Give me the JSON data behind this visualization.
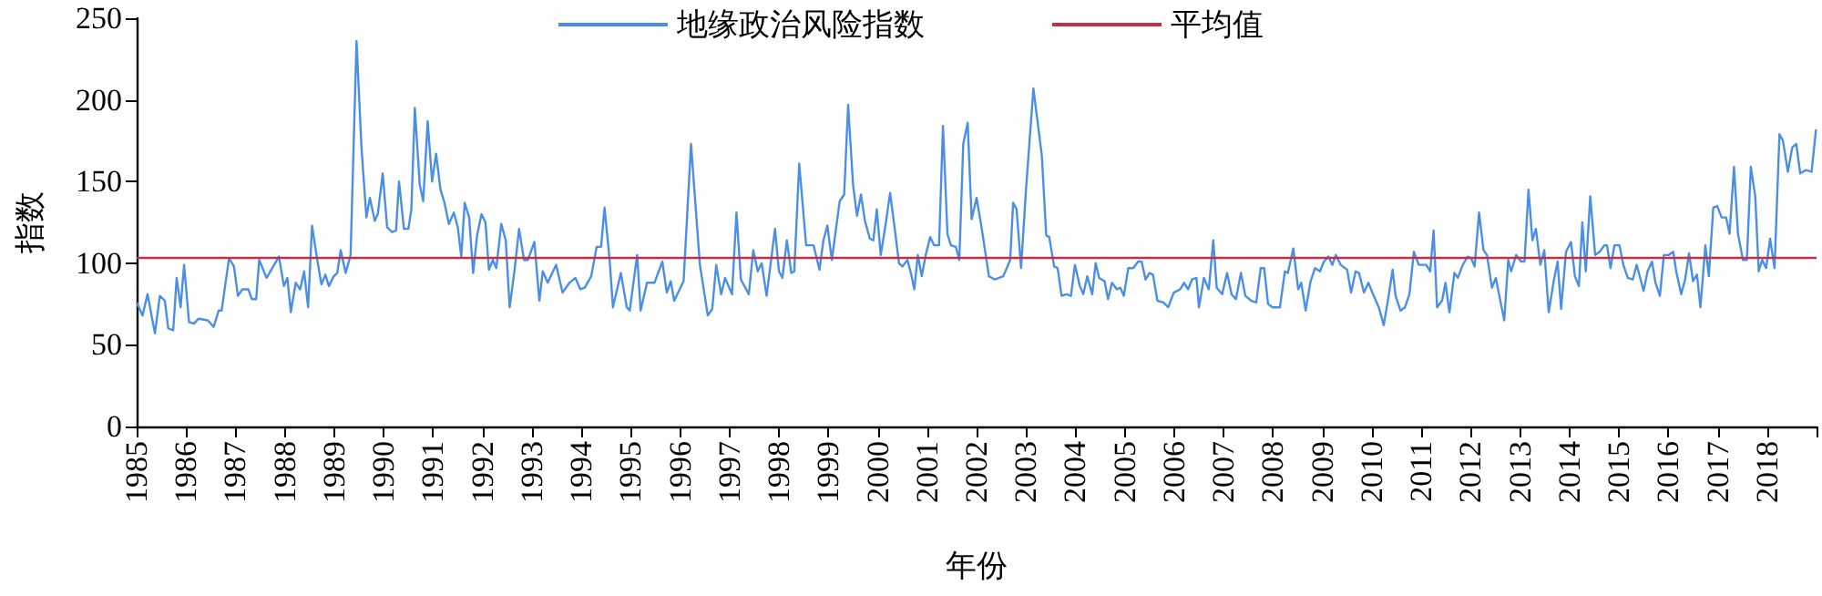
{
  "chart_data": {
    "type": "line",
    "xlabel": "年份",
    "ylabel": "指数",
    "legend": "top",
    "grid": false,
    "marker": "none",
    "line_style": "solid",
    "xlim": [
      1985,
      2019
    ],
    "ylim": [
      0,
      250
    ],
    "xticks": [
      1985,
      1986,
      1987,
      1988,
      1989,
      1990,
      1991,
      1992,
      1993,
      1994,
      1995,
      1996,
      1997,
      1998,
      1999,
      2000,
      2001,
      2002,
      2003,
      2004,
      2005,
      2006,
      2007,
      2008,
      2009,
      2010,
      2011,
      2012,
      2013,
      2014,
      2015,
      2016,
      2017,
      2018,
      {
        "value": 2019,
        "label": null
      }
    ],
    "yticks": [
      0,
      50,
      100,
      150,
      200,
      250
    ],
    "ref_lines": [
      {
        "axis": "y",
        "value": 103,
        "label": "平均值",
        "color": "#c0304a",
        "line_style": "solid"
      }
    ],
    "series": [
      {
        "name": "地缘政治风险指数",
        "color": "#4a8fe7",
        "x": [
          1985.0,
          1985.12,
          1985.22,
          1985.37,
          1985.47,
          1985.57,
          1985.64,
          1985.74,
          1985.81,
          1985.89,
          1985.96,
          1986.06,
          1986.16,
          1986.25,
          1986.44,
          1986.56,
          1986.66,
          1986.72,
          1986.87,
          1986.97,
          1987.05,
          1987.14,
          1987.26,
          1987.33,
          1987.42,
          1987.48,
          1987.63,
          1987.88,
          1987.98,
          1988.05,
          1988.12,
          1988.22,
          1988.31,
          1988.39,
          1988.47,
          1988.55,
          1988.65,
          1988.74,
          1988.82,
          1988.89,
          1988.99,
          1989.06,
          1989.13,
          1989.23,
          1989.33,
          1989.45,
          1989.55,
          1989.65,
          1989.72,
          1989.82,
          1989.88,
          1989.98,
          1990.07,
          1990.17,
          1990.25,
          1990.31,
          1990.41,
          1990.5,
          1990.56,
          1990.63,
          1990.73,
          1990.8,
          1990.89,
          1990.98,
          1991.06,
          1991.15,
          1991.23,
          1991.32,
          1991.42,
          1991.5,
          1991.57,
          1991.64,
          1991.73,
          1991.81,
          1991.89,
          1991.98,
          1992.06,
          1992.13,
          1992.21,
          1992.28,
          1992.38,
          1992.47,
          1992.55,
          1992.65,
          1992.74,
          1992.84,
          1992.92,
          1993.05,
          1993.15,
          1993.22,
          1993.32,
          1993.49,
          1993.62,
          1993.76,
          1993.88,
          1993.98,
          1994.07,
          1994.2,
          1994.31,
          1994.4,
          1994.47,
          1994.57,
          1994.64,
          1994.8,
          1994.92,
          1994.98,
          1995.13,
          1995.2,
          1995.33,
          1995.48,
          1995.64,
          1995.73,
          1995.81,
          1995.88,
          1996.07,
          1996.22,
          1996.4,
          1996.56,
          1996.65,
          1996.73,
          1996.83,
          1996.91,
          1997.05,
          1997.14,
          1997.23,
          1997.39,
          1997.48,
          1997.57,
          1997.65,
          1997.75,
          1997.92,
          1998.0,
          1998.07,
          1998.16,
          1998.25,
          1998.31,
          1998.41,
          1998.55,
          1998.7,
          1998.82,
          1998.9,
          1998.98,
          1999.07,
          1999.23,
          1999.32,
          1999.4,
          1999.5,
          1999.58,
          1999.66,
          1999.74,
          1999.84,
          1999.91,
          1999.98,
          2000.06,
          2000.15,
          2000.25,
          2000.34,
          2000.43,
          2000.5,
          2000.6,
          2000.67,
          2000.74,
          2000.81,
          2000.89,
          2000.97,
          2001.06,
          2001.14,
          2001.24,
          2001.32,
          2001.41,
          2001.48,
          2001.58,
          2001.65,
          2001.73,
          2001.82,
          2001.9,
          2002.0,
          2002.1,
          2002.25,
          2002.37,
          2002.54,
          2002.68,
          2002.74,
          2002.81,
          2002.9,
          2003.0,
          2003.15,
          2003.32,
          2003.41,
          2003.47,
          2003.57,
          2003.64,
          2003.72,
          2003.82,
          2003.91,
          2003.99,
          2004.09,
          2004.16,
          2004.24,
          2004.34,
          2004.41,
          2004.48,
          2004.59,
          2004.66,
          2004.74,
          2004.84,
          2004.91,
          2004.98,
          2005.07,
          2005.17,
          2005.27,
          2005.34,
          2005.42,
          2005.5,
          2005.57,
          2005.66,
          2005.78,
          2005.88,
          2005.99,
          2006.12,
          2006.2,
          2006.28,
          2006.36,
          2006.45,
          2006.5,
          2006.6,
          2006.7,
          2006.79,
          2006.86,
          2006.97,
          2007.07,
          2007.16,
          2007.25,
          2007.35,
          2007.44,
          2007.56,
          2007.66,
          2007.75,
          2007.82,
          2007.9,
          2007.99,
          2008.14,
          2008.24,
          2008.3,
          2008.41,
          2008.51,
          2008.57,
          2008.66,
          2008.76,
          2008.85,
          2008.95,
          2009.03,
          2009.12,
          2009.2,
          2009.27,
          2009.37,
          2009.5,
          2009.58,
          2009.67,
          2009.74,
          2009.84,
          2009.93,
          2010.01,
          2010.14,
          2010.24,
          2010.34,
          2010.42,
          2010.48,
          2010.58,
          2010.67,
          2010.76,
          2010.85,
          2010.95,
          2011.1,
          2011.18,
          2011.25,
          2011.32,
          2011.42,
          2011.49,
          2011.57,
          2011.67,
          2011.74,
          2011.84,
          2011.94,
          2012.01,
          2012.08,
          2012.17,
          2012.26,
          2012.33,
          2012.43,
          2012.51,
          2012.58,
          2012.68,
          2012.76,
          2012.82,
          2012.92,
          2013.02,
          2013.09,
          2013.17,
          2013.25,
          2013.32,
          2013.41,
          2013.49,
          2013.58,
          2013.68,
          2013.76,
          2013.83,
          2013.93,
          2014.03,
          2014.11,
          2014.19,
          2014.26,
          2014.33,
          2014.42,
          2014.52,
          2014.61,
          2014.71,
          2014.76,
          2014.83,
          2014.91,
          2015.01,
          2015.09,
          2015.18,
          2015.28,
          2015.36,
          2015.5,
          2015.58,
          2015.67,
          2015.74,
          2015.83,
          2015.91,
          2016.01,
          2016.1,
          2016.16,
          2016.26,
          2016.34,
          2016.42,
          2016.5,
          2016.58,
          2016.65,
          2016.75,
          2016.82,
          2016.91,
          2016.99,
          2017.08,
          2017.17,
          2017.24,
          2017.33,
          2017.41,
          2017.51,
          2017.59,
          2017.67,
          2017.76,
          2017.83,
          2017.9,
          2017.98,
          2018.06,
          2018.15,
          2018.25,
          2018.32,
          2018.42,
          2018.51,
          2018.59,
          2018.67,
          2018.78,
          2018.9,
          2018.99
        ],
        "values": [
          76,
          68,
          81,
          57,
          80,
          77,
          60,
          59,
          91,
          73,
          99,
          64,
          63,
          66,
          65,
          61,
          71,
          71,
          103,
          98,
          80,
          84,
          84,
          78,
          78,
          102,
          91,
          104,
          86,
          91,
          70,
          88,
          84,
          95,
          73,
          123,
          103,
          87,
          93,
          86,
          92,
          94,
          108,
          94,
          105,
          236,
          171,
          128,
          140,
          126,
          130,
          155,
          122,
          119,
          120,
          150,
          121,
          121,
          133,
          195,
          148,
          138,
          187,
          150,
          167,
          145,
          137,
          124,
          131,
          122,
          104,
          137,
          128,
          94,
          117,
          130,
          125,
          96,
          102,
          97,
          124,
          114,
          73,
          96,
          121,
          102,
          102,
          113,
          77,
          95,
          88,
          99,
          82,
          88,
          91,
          84,
          85,
          92,
          110,
          110,
          134,
          103,
          73,
          94,
          73,
          71,
          105,
          71,
          88,
          88,
          101,
          82,
          89,
          77,
          89,
          173,
          99,
          68,
          72,
          99,
          81,
          91,
          81,
          131,
          90,
          81,
          108,
          95,
          100,
          80,
          121,
          95,
          91,
          114,
          94,
          95,
          161,
          111,
          111,
          96,
          114,
          123,
          102,
          138,
          142,
          197,
          148,
          129,
          142,
          126,
          115,
          114,
          133,
          105,
          122,
          143,
          122,
          100,
          98,
          102,
          94,
          84,
          105,
          92,
          105,
          116,
          111,
          111,
          184,
          118,
          111,
          110,
          102,
          173,
          186,
          127,
          140,
          122,
          92,
          90,
          92,
          102,
          137,
          133,
          97,
          145,
          207,
          166,
          117,
          116,
          98,
          97,
          80,
          81,
          80,
          99,
          86,
          81,
          92,
          81,
          100,
          91,
          89,
          78,
          88,
          84,
          85,
          80,
          97,
          97,
          101,
          101,
          90,
          94,
          93,
          77,
          76,
          73,
          82,
          84,
          88,
          84,
          90,
          91,
          73,
          91,
          84,
          114,
          85,
          81,
          94,
          81,
          78,
          94,
          80,
          77,
          76,
          97,
          97,
          75,
          73,
          73,
          95,
          94,
          109,
          84,
          88,
          71,
          89,
          97,
          95,
          101,
          104,
          99,
          105,
          99,
          96,
          82,
          95,
          94,
          82,
          88,
          82,
          73,
          62,
          80,
          96,
          80,
          71,
          73,
          81,
          107,
          99,
          99,
          95,
          120,
          73,
          77,
          88,
          70,
          94,
          91,
          99,
          104,
          103,
          98,
          131,
          108,
          105,
          85,
          91,
          80,
          65,
          102,
          95,
          105,
          101,
          101,
          145,
          114,
          121,
          99,
          108,
          70,
          89,
          101,
          72,
          107,
          113,
          92,
          86,
          125,
          95,
          141,
          105,
          107,
          111,
          111,
          97,
          111,
          111,
          99,
          91,
          90,
          99,
          83,
          95,
          101,
          88,
          80,
          105,
          105,
          107,
          95,
          81,
          90,
          106,
          89,
          93,
          73,
          111,
          92,
          134,
          135,
          128,
          128,
          118,
          159,
          118,
          102,
          102,
          159,
          141,
          95,
          102,
          97,
          115,
          97,
          179,
          175,
          156,
          171,
          173,
          155,
          157,
          156,
          182
        ]
      }
    ]
  }
}
